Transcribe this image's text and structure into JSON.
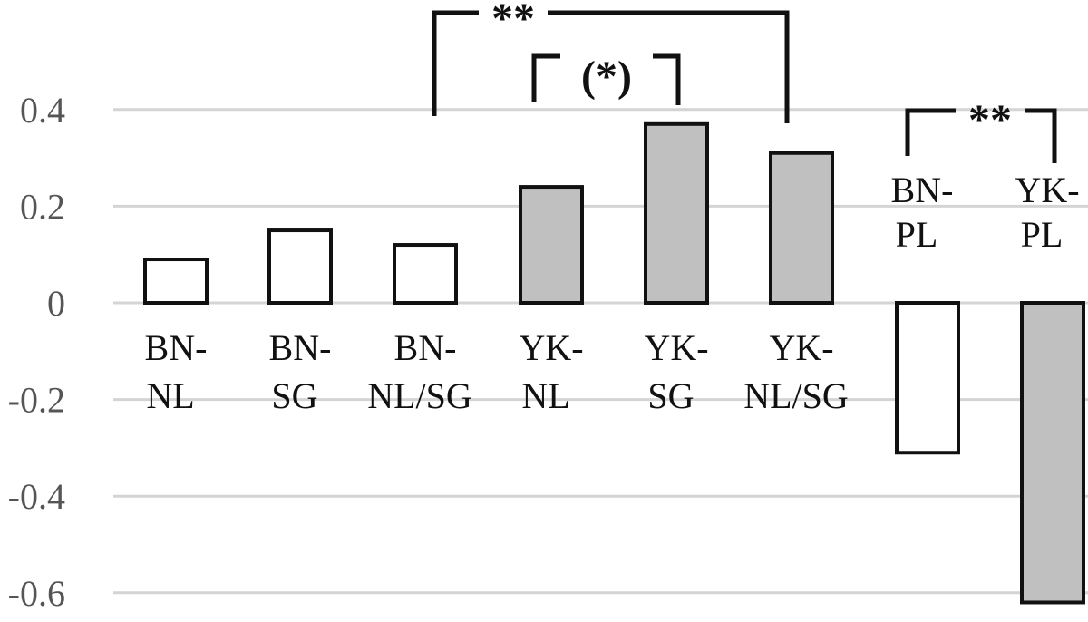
{
  "chart_data": {
    "type": "bar",
    "title": "",
    "xlabel": "",
    "ylabel": "",
    "ylim": [
      -0.6,
      0.4
    ],
    "yticks": [
      "0.4",
      "0.2",
      "0",
      "-0.2",
      "-0.4",
      "-0.6"
    ],
    "grid": true,
    "legend": "none",
    "colors": {
      "BN": "#ffffff",
      "YK": "#c0c0c0",
      "outline": "#111111",
      "grid": "#d4d4d4"
    },
    "bars": [
      {
        "label": [
          "BN-",
          "NL"
        ],
        "value": 0.09,
        "group": "BN"
      },
      {
        "label": [
          "BN-",
          "SG"
        ],
        "value": 0.15,
        "group": "BN"
      },
      {
        "label": [
          "BN-",
          "NL/SG"
        ],
        "value": 0.12,
        "group": "BN"
      },
      {
        "label": [
          "YK-",
          "NL"
        ],
        "value": 0.24,
        "group": "YK"
      },
      {
        "label": [
          "YK-",
          "SG"
        ],
        "value": 0.37,
        "group": "YK"
      },
      {
        "label": [
          "YK-",
          "NL/SG"
        ],
        "value": 0.31,
        "group": "YK"
      },
      {
        "label": [
          "BN-",
          "PL"
        ],
        "value": -0.31,
        "group": "BN"
      },
      {
        "label": [
          "YK-",
          "PL"
        ],
        "value": -0.62,
        "group": "YK"
      }
    ],
    "annotations": [
      {
        "text": "**",
        "from": 2,
        "to": 5
      },
      {
        "text": "(*)",
        "from": 3,
        "to": 4
      },
      {
        "text": "**",
        "from": 6,
        "to": 7
      }
    ]
  }
}
